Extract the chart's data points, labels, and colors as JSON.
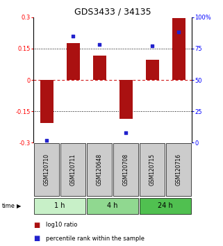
{
  "title": "GDS3433 / 34135",
  "samples": [
    "GSM120710",
    "GSM120711",
    "GSM120648",
    "GSM120708",
    "GSM120715",
    "GSM120716"
  ],
  "groups": [
    {
      "label": "1 h",
      "indices": [
        0,
        1
      ],
      "color": "#c8f0c8"
    },
    {
      "label": "4 h",
      "indices": [
        2,
        3
      ],
      "color": "#90d890"
    },
    {
      "label": "24 h",
      "indices": [
        4,
        5
      ],
      "color": "#50c050"
    }
  ],
  "log10_ratio": [
    -0.205,
    0.175,
    0.115,
    -0.185,
    0.095,
    0.295
  ],
  "percentile_rank": [
    2,
    85,
    78,
    8,
    77,
    88
  ],
  "bar_color": "#aa1111",
  "dot_color": "#2222cc",
  "ylim_left": [
    -0.3,
    0.3
  ],
  "ylim_right": [
    0,
    100
  ],
  "yticks_left": [
    -0.3,
    -0.15,
    0,
    0.15,
    0.3
  ],
  "yticks_right": [
    0,
    25,
    50,
    75,
    100
  ],
  "hlines_dotted": [
    -0.15,
    0.15
  ],
  "zero_line_color": "#cc0000",
  "dot_color_name": "#2233cc",
  "bg_sample_box": "#cccccc",
  "title_fontsize": 9,
  "tick_fontsize": 6,
  "legend_fontsize": 6,
  "sample_label_fontsize": 5.5,
  "group_label_fontsize": 7
}
